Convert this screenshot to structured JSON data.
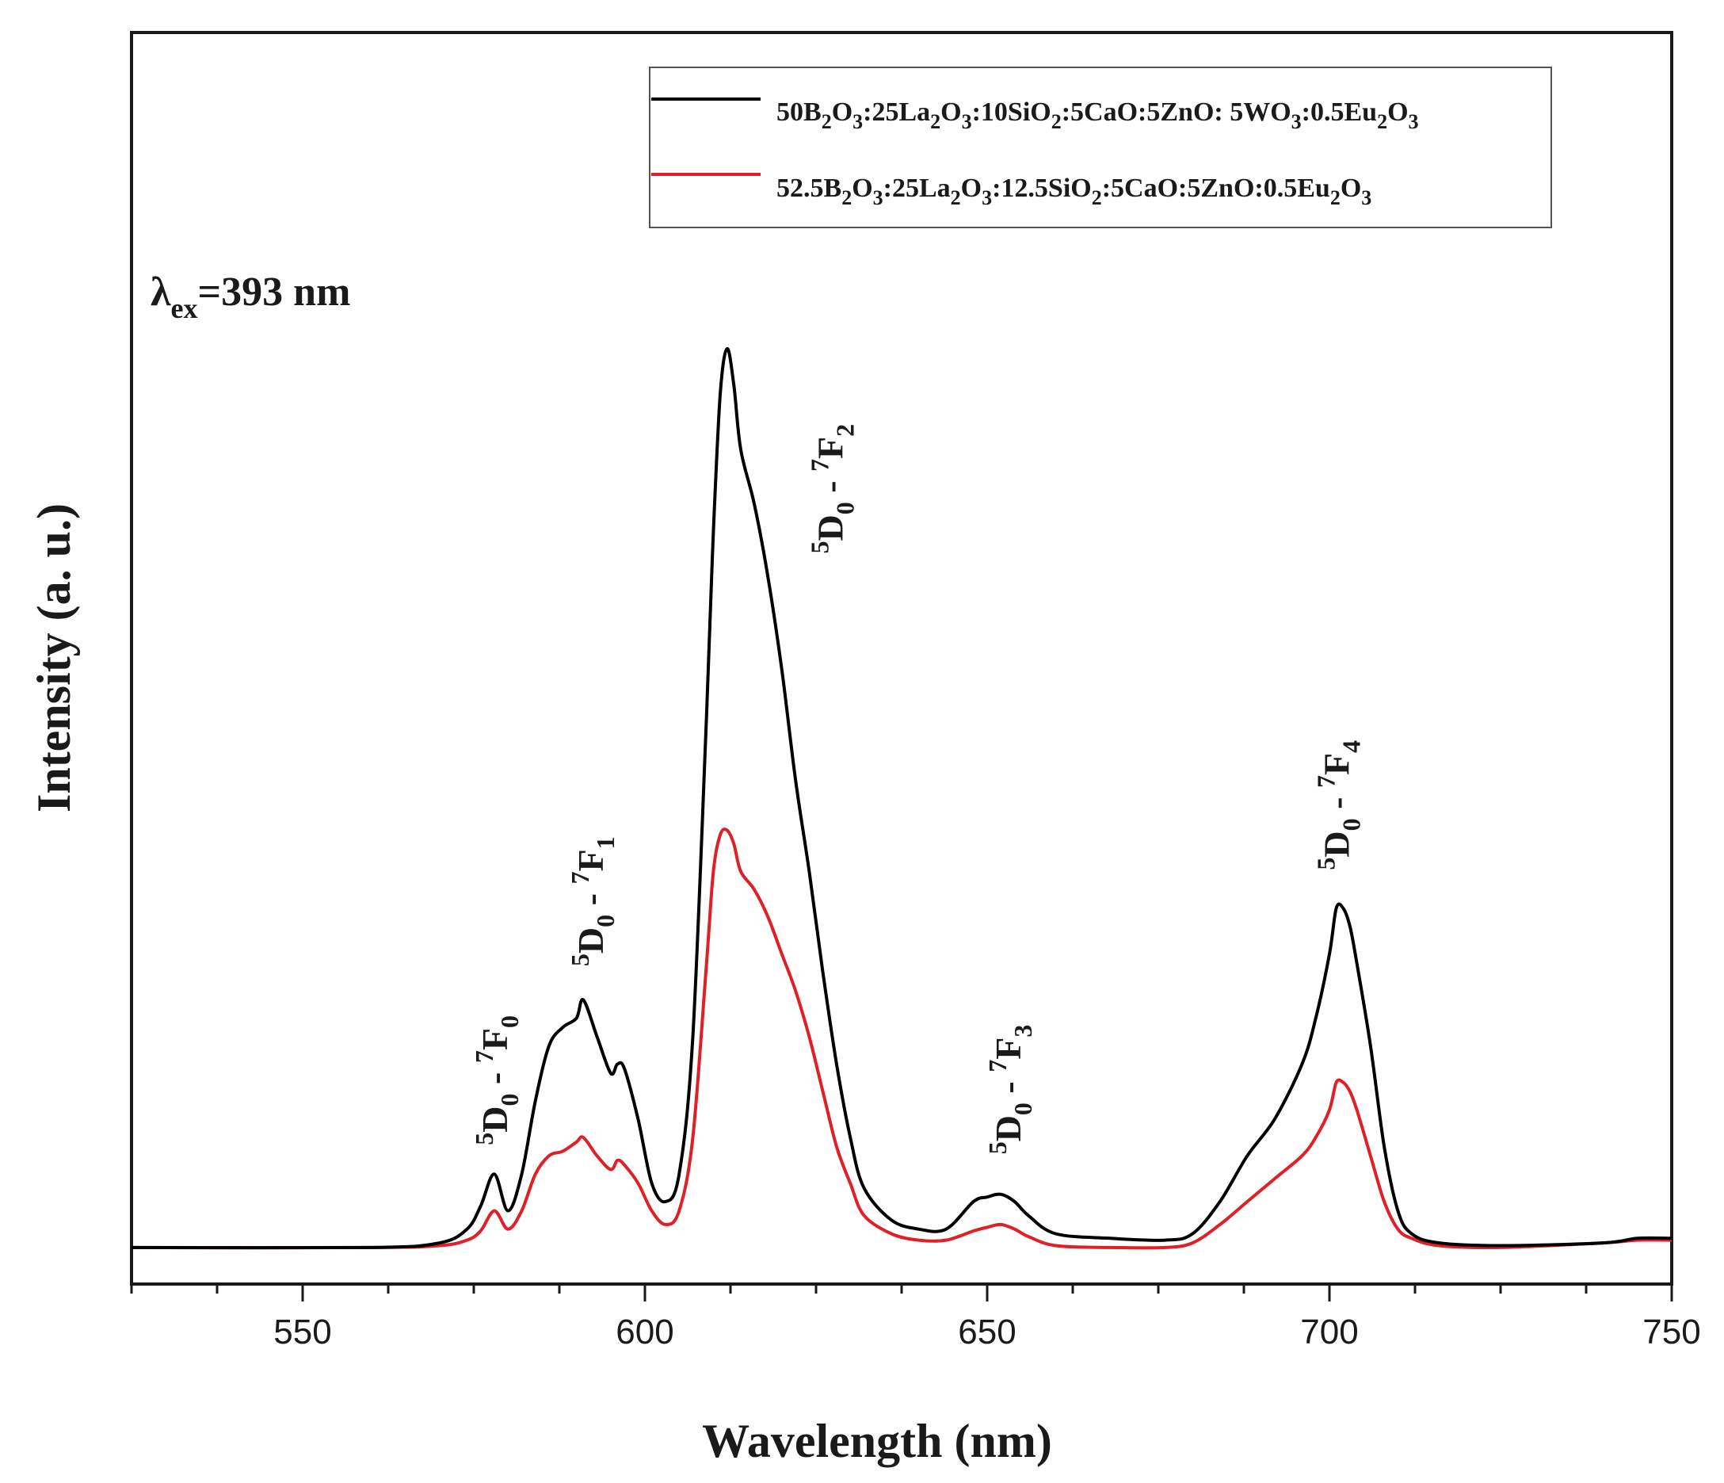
{
  "chart_data": {
    "type": "line",
    "xlabel": "Wavelength (nm)",
    "ylabel": "Intensity (a. u.)",
    "xlim": [
      525,
      750
    ],
    "ylim": [
      0,
      1
    ],
    "x_ticks": [
      550,
      600,
      650,
      700,
      750
    ],
    "y_ticks_shown": false,
    "excitation": {
      "prefix": "λ",
      "subscript": "ex",
      "value": "=393 nm"
    },
    "legend": {
      "position": "top-right"
    },
    "series": [
      {
        "name": "50B2O3:25La2O3:10SiO2:5CaO:5ZnO: 5WO3:0.5Eu2O3",
        "label_parts": [
          {
            "t": "50B"
          },
          {
            "s": "2"
          },
          {
            "t": "O"
          },
          {
            "s": "3"
          },
          {
            "t": ":25La"
          },
          {
            "s": "2"
          },
          {
            "t": "O"
          },
          {
            "s": "3"
          },
          {
            "t": ":10SiO"
          },
          {
            "s": "2"
          },
          {
            "t": ":5CaO:5ZnO: 5WO"
          },
          {
            "s": "3"
          },
          {
            "t": ":0.5Eu"
          },
          {
            "s": "2"
          },
          {
            "t": "O"
          },
          {
            "s": "3"
          }
        ],
        "color": "#000000",
        "x": [
          525,
          560,
          570,
          574,
          576,
          578,
          580,
          582,
          584,
          586,
          588,
          590,
          591,
          593,
          595,
          596,
          597,
          599,
          601,
          603,
          605,
          607,
          609,
          610,
          611,
          612,
          613,
          614,
          616,
          618,
          620,
          622,
          624,
          626,
          628,
          630,
          632,
          636,
          640,
          644,
          648,
          650,
          652,
          654,
          656,
          660,
          668,
          676,
          680,
          684,
          688,
          692,
          696,
          698,
          700,
          701,
          702,
          703,
          704,
          706,
          708,
          710,
          712,
          716,
          725,
          740,
          745,
          750
        ],
        "values": [
          0.02,
          0.02,
          0.025,
          0.04,
          0.065,
          0.1,
          0.06,
          0.1,
          0.18,
          0.24,
          0.26,
          0.27,
          0.29,
          0.25,
          0.21,
          0.22,
          0.215,
          0.16,
          0.09,
          0.07,
          0.1,
          0.25,
          0.6,
          0.8,
          0.95,
          1.0,
          0.96,
          0.89,
          0.83,
          0.75,
          0.65,
          0.53,
          0.43,
          0.32,
          0.22,
          0.14,
          0.085,
          0.05,
          0.04,
          0.04,
          0.07,
          0.075,
          0.078,
          0.07,
          0.055,
          0.035,
          0.03,
          0.028,
          0.035,
          0.07,
          0.12,
          0.16,
          0.22,
          0.27,
          0.34,
          0.39,
          0.39,
          0.37,
          0.33,
          0.24,
          0.13,
          0.06,
          0.035,
          0.025,
          0.022,
          0.025,
          0.03,
          0.03
        ]
      },
      {
        "name": "52.5B2O3:25La2O3:12.5SiO2:5CaO:5ZnO:0.5Eu2O3",
        "label_parts": [
          {
            "t": "52.5B"
          },
          {
            "s": "2"
          },
          {
            "t": "O"
          },
          {
            "s": "3"
          },
          {
            "t": ":25La"
          },
          {
            "s": "2"
          },
          {
            "t": "O"
          },
          {
            "s": "3"
          },
          {
            "t": ":12.5SiO"
          },
          {
            "s": "2"
          },
          {
            "t": ":5CaO:5ZnO:0.5Eu"
          },
          {
            "s": "2"
          },
          {
            "t": "O"
          },
          {
            "s": "3"
          }
        ],
        "color": "#e01f26",
        "x": [
          525,
          560,
          570,
          574,
          576,
          578,
          580,
          582,
          584,
          586,
          588,
          590,
          591,
          593,
          595,
          596,
          597,
          599,
          601,
          603,
          605,
          607,
          609,
          610,
          611,
          612,
          613,
          614,
          616,
          618,
          620,
          622,
          624,
          626,
          628,
          630,
          632,
          636,
          640,
          644,
          648,
          650,
          652,
          654,
          656,
          660,
          668,
          676,
          680,
          684,
          688,
          692,
          696,
          698,
          700,
          701,
          702,
          703,
          704,
          706,
          708,
          710,
          712,
          716,
          725,
          740,
          745,
          750
        ],
        "values": [
          0.02,
          0.02,
          0.022,
          0.028,
          0.038,
          0.06,
          0.04,
          0.06,
          0.1,
          0.12,
          0.125,
          0.135,
          0.14,
          0.12,
          0.105,
          0.115,
          0.11,
          0.09,
          0.06,
          0.045,
          0.06,
          0.14,
          0.33,
          0.43,
          0.47,
          0.475,
          0.46,
          0.43,
          0.41,
          0.38,
          0.34,
          0.3,
          0.25,
          0.19,
          0.13,
          0.09,
          0.055,
          0.035,
          0.028,
          0.028,
          0.038,
          0.042,
          0.045,
          0.04,
          0.032,
          0.022,
          0.02,
          0.02,
          0.025,
          0.045,
          0.07,
          0.095,
          0.12,
          0.14,
          0.17,
          0.2,
          0.2,
          0.19,
          0.17,
          0.12,
          0.07,
          0.04,
          0.03,
          0.022,
          0.02,
          0.025,
          0.028,
          0.028
        ]
      }
    ],
    "annotations": [
      {
        "x": 578,
        "y": 0.11,
        "upper": "0",
        "lower": "0"
      },
      {
        "x": 592,
        "y": 0.305,
        "upper": "1",
        "lower": "0"
      },
      {
        "x": 627,
        "y": 0.755,
        "upper": "2",
        "lower": "0"
      },
      {
        "x": 653,
        "y": 0.1,
        "upper": "3",
        "lower": "0"
      },
      {
        "x": 701,
        "y": 0.41,
        "upper": "4",
        "lower": "0"
      }
    ],
    "annotation_template": {
      "a_sup": "5",
      "a_base": "D",
      "b_sup": "7",
      "b_base": "F",
      "sep": " - "
    }
  }
}
